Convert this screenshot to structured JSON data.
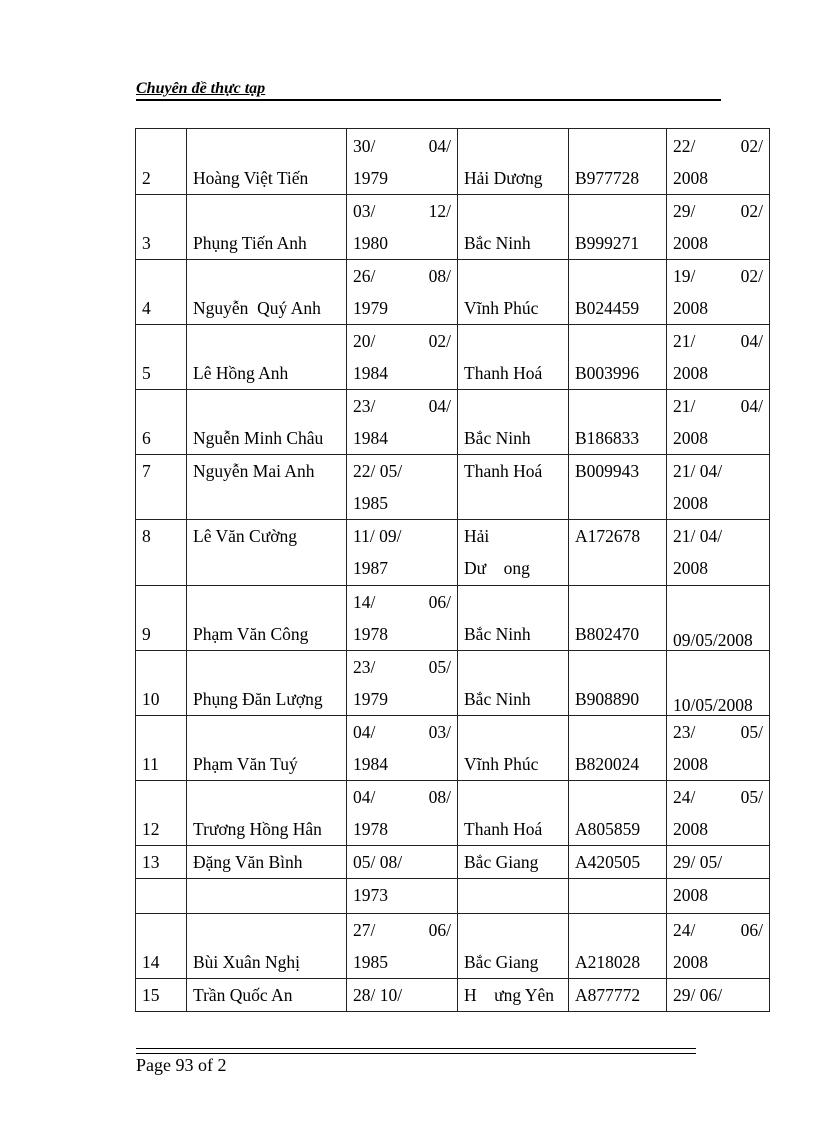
{
  "header": {
    "title": "Chuyên đề thực tạp"
  },
  "table": {
    "rows": [
      {
        "style": "just",
        "h": 66,
        "cells": [
          [
            "2"
          ],
          [
            "Hoàng Việt Tiến"
          ],
          [
            "30/",
            "04/",
            "|",
            "1979"
          ],
          [
            "Hải Dương"
          ],
          [
            "B977728"
          ],
          [
            "22/",
            "02/",
            "|",
            "2008"
          ]
        ]
      },
      {
        "style": "just",
        "h": 65,
        "cells": [
          [
            "3"
          ],
          [
            "Phụng Tiến Anh"
          ],
          [
            "03/",
            "12/",
            "|",
            "1980"
          ],
          [
            "Bắc Ninh"
          ],
          [
            "B999271"
          ],
          [
            "29/",
            "02/",
            "|",
            "2008"
          ]
        ]
      },
      {
        "style": "just",
        "h": 64,
        "cells": [
          [
            "4"
          ],
          [
            "Nguyễn  Quý Anh"
          ],
          [
            "26/",
            "08/",
            "|",
            "1979"
          ],
          [
            "Vĩnh Phúc"
          ],
          [
            "B024459"
          ],
          [
            "19/",
            "02/",
            "|",
            "2008"
          ]
        ]
      },
      {
        "style": "just",
        "h": 65,
        "cells": [
          [
            "5"
          ],
          [
            "Lê Hồng Anh"
          ],
          [
            "20/",
            "02/",
            "|",
            "1984"
          ],
          [
            "Thanh Hoá"
          ],
          [
            "B003996"
          ],
          [
            "21/",
            "04/",
            "|",
            "2008"
          ]
        ]
      },
      {
        "style": "just",
        "h": 64,
        "cells": [
          [
            "6"
          ],
          [
            "Nguễn Minh Châu"
          ],
          [
            "23/",
            "04/",
            "|",
            "1984"
          ],
          [
            "Bắc Ninh"
          ],
          [
            "B186833"
          ],
          [
            "21/",
            "04/",
            "|",
            "2008"
          ]
        ]
      },
      {
        "style": "top",
        "h": 65,
        "cells": [
          [
            "7"
          ],
          [
            "Nguyễn Mai Anh"
          ],
          [
            "22/ 05/",
            "|",
            "1985"
          ],
          [
            "Thanh Hoá"
          ],
          [
            "B009943"
          ],
          [
            "21/ 04/",
            "|",
            "2008"
          ]
        ]
      },
      {
        "style": "top",
        "h": 66,
        "cells": [
          [
            "8"
          ],
          [
            "Lê Văn Cường"
          ],
          [
            "11/ 09/",
            "|",
            "1987"
          ],
          [
            "Hải",
            "|",
            "Dư    ong"
          ],
          [
            "A172678"
          ],
          [
            "21/ 04/",
            "|",
            "2008"
          ]
        ]
      },
      {
        "style": "just",
        "h": 64,
        "cells": [
          [
            "9"
          ],
          [
            "Phạm Văn Công"
          ],
          [
            "14/",
            "06/",
            "|",
            "1978"
          ],
          [
            "Bắc Ninh"
          ],
          [
            "B802470"
          ],
          [
            "09/05/2008"
          ]
        ],
        "low": true
      },
      {
        "style": "just",
        "h": 65,
        "cells": [
          [
            "10"
          ],
          [
            "Phụng Đăn Lượng"
          ],
          [
            "23/",
            "05/",
            "|",
            "1979"
          ],
          [
            "Bắc Ninh"
          ],
          [
            "B908890"
          ],
          [
            "10/05/2008"
          ]
        ],
        "low": true
      },
      {
        "style": "just",
        "h": 64,
        "cells": [
          [
            "11"
          ],
          [
            "Phạm Văn Tuý"
          ],
          [
            "04/",
            "03/",
            "|",
            "1984"
          ],
          [
            "Vĩnh Phúc"
          ],
          [
            "B820024"
          ],
          [
            "23/",
            "05/",
            "|",
            "2008"
          ]
        ]
      },
      {
        "style": "just",
        "h": 65,
        "cells": [
          [
            "12"
          ],
          [
            "Trương Hồng Hân"
          ],
          [
            "04/",
            "08/",
            "|",
            "1978"
          ],
          [
            "Thanh Hoá"
          ],
          [
            "A805859"
          ],
          [
            "24/",
            "05/",
            "|",
            "2008"
          ]
        ]
      },
      {
        "style": "top",
        "h": 30,
        "cells": [
          [
            "13"
          ],
          [
            "Đặng Văn Bình"
          ],
          [
            "05/ 08/"
          ],
          [
            "Bắc Giang"
          ],
          [
            "A420505"
          ],
          [
            "29/ 05/"
          ]
        ]
      },
      {
        "style": "top",
        "h": 35,
        "cells": [
          [
            ""
          ],
          [
            ""
          ],
          [
            "1973"
          ],
          [
            ""
          ],
          [
            ""
          ],
          [
            "2008"
          ]
        ]
      },
      {
        "style": "just",
        "h": 64,
        "cells": [
          [
            "14"
          ],
          [
            "Bùi Xuân Nghị"
          ],
          [
            "27/",
            "06/",
            "|",
            "1985"
          ],
          [
            "Bắc Giang"
          ],
          [
            "A218028"
          ],
          [
            "24/",
            "06/",
            "|",
            "2008"
          ]
        ]
      },
      {
        "style": "top",
        "h": 31,
        "cells": [
          [
            "15"
          ],
          [
            "Trần Quốc An"
          ],
          [
            "28/ 10/"
          ],
          [
            "H    ưng Yên"
          ],
          [
            "A877772"
          ],
          [
            "29/ 06/"
          ]
        ]
      }
    ]
  },
  "footer": {
    "page_label": "Page 93  of 2"
  }
}
